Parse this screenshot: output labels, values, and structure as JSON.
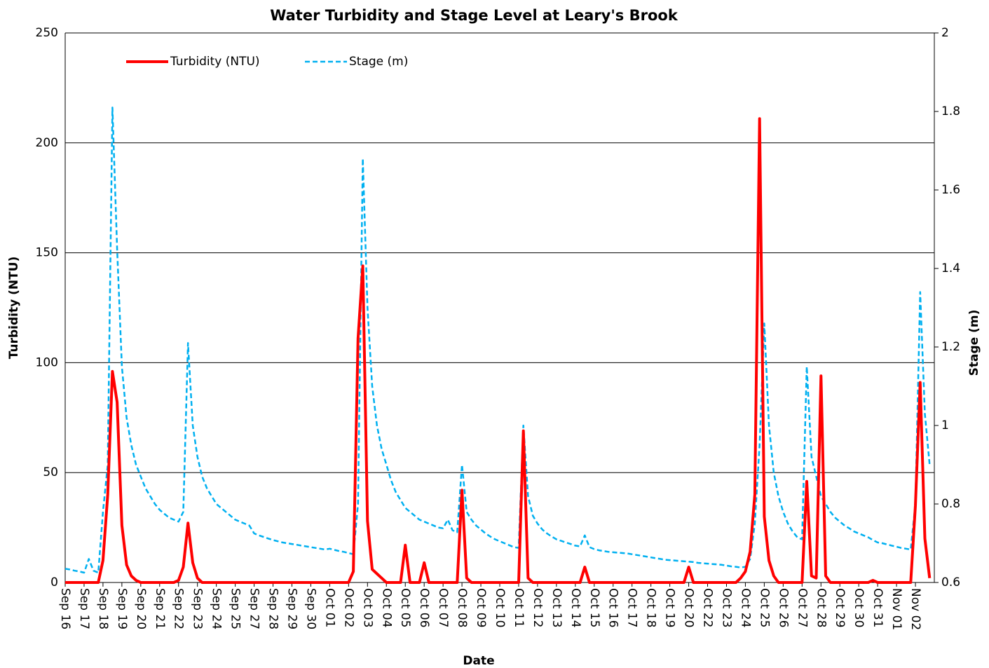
{
  "chart_data": {
    "type": "line",
    "title": "Water Turbidity and Stage Level at Leary's Brook",
    "x_label": "Date",
    "y_label": "Turbidity (NTU)",
    "y2_label": "Stage (m)",
    "categories": [
      "Sep 16",
      null,
      null,
      null,
      "Sep 17",
      null,
      null,
      null,
      "Sep 18",
      null,
      null,
      null,
      "Sep 19",
      null,
      null,
      null,
      "Sep 20",
      null,
      null,
      null,
      "Sep 21",
      null,
      null,
      null,
      "Sep 22",
      null,
      null,
      null,
      "Sep 23",
      null,
      null,
      null,
      "Sep 24",
      null,
      null,
      null,
      "Sep 25",
      null,
      null,
      null,
      "Sep 27",
      null,
      null,
      null,
      "Sep 28",
      null,
      null,
      null,
      "Sep 29",
      null,
      null,
      null,
      "Sep 30",
      null,
      null,
      null,
      "Oct 01",
      null,
      null,
      null,
      "Oct 02",
      null,
      null,
      null,
      "Oct 03",
      null,
      null,
      null,
      "Oct 04",
      null,
      null,
      null,
      "Oct 05",
      null,
      null,
      null,
      "Oct 06",
      null,
      null,
      null,
      "Oct 07",
      null,
      null,
      null,
      "Oct 08",
      null,
      null,
      null,
      "Oct 09",
      null,
      null,
      null,
      "Oct 10",
      null,
      null,
      null,
      "Oct 11",
      null,
      null,
      null,
      "Oct 12",
      null,
      null,
      null,
      "Oct 13",
      null,
      null,
      null,
      "Oct 14",
      null,
      null,
      null,
      "Oct 15",
      null,
      null,
      null,
      "Oct 16",
      null,
      null,
      null,
      "Oct 17",
      null,
      null,
      null,
      "Oct 18",
      null,
      null,
      null,
      "Oct 19",
      null,
      null,
      null,
      "Oct 20",
      null,
      null,
      null,
      "Oct 22",
      null,
      null,
      null,
      "Oct 23",
      null,
      null,
      null,
      "Oct 24",
      null,
      null,
      null,
      "Oct 25",
      null,
      null,
      null,
      "Oct 26",
      null,
      null,
      null,
      "Oct 27",
      null,
      null,
      null,
      "Oct 28",
      null,
      null,
      null,
      "Oct 29",
      null,
      null,
      null,
      "Oct 30",
      null,
      null,
      null,
      "Oct 31",
      null,
      null,
      null,
      "Nov 01",
      null,
      null,
      null,
      "Nov 02",
      null,
      null,
      null
    ],
    "series": [
      {
        "name": "Turbidity (NTU)",
        "color": "#ff0000",
        "dash": false,
        "values": [
          0,
          0,
          0,
          0,
          0,
          0,
          0,
          0,
          10,
          40,
          96,
          82,
          26,
          8,
          3,
          1,
          0,
          0,
          0,
          0,
          0,
          0,
          0,
          0,
          1,
          7,
          27,
          9,
          2,
          0,
          0,
          0,
          0,
          0,
          0,
          0,
          0,
          0,
          0,
          0,
          0,
          0,
          0,
          0,
          0,
          0,
          0,
          0,
          0,
          0,
          0,
          0,
          0,
          0,
          0,
          0,
          0,
          0,
          0,
          0,
          0,
          5,
          111,
          144,
          28,
          6,
          4,
          2,
          0,
          0,
          0,
          0,
          17,
          0,
          0,
          0,
          9,
          0,
          0,
          0,
          0,
          0,
          0,
          0,
          42,
          2,
          0,
          0,
          0,
          0,
          0,
          0,
          0,
          0,
          0,
          0,
          0,
          69,
          2,
          0,
          0,
          0,
          0,
          0,
          0,
          0,
          0,
          0,
          0,
          0,
          7,
          0,
          0,
          0,
          0,
          0,
          0,
          0,
          0,
          0,
          0,
          0,
          0,
          0,
          0,
          0,
          0,
          0,
          0,
          0,
          0,
          0,
          7,
          0,
          0,
          0,
          0,
          0,
          0,
          0,
          0,
          0,
          0,
          2,
          5,
          14,
          40,
          211,
          30,
          10,
          3,
          0,
          0,
          0,
          0,
          0,
          0,
          46,
          3,
          2,
          94,
          3,
          0,
          0,
          0,
          0,
          0,
          0,
          0,
          0,
          0,
          1,
          0,
          0,
          0,
          0,
          0,
          0,
          0,
          0,
          35,
          91,
          20,
          2
        ]
      },
      {
        "name": "Stage (m)",
        "color": "#00b0f0",
        "dash": true,
        "axis": "y2",
        "values": [
          0.635,
          0.633,
          0.63,
          0.628,
          0.625,
          0.66,
          0.63,
          0.625,
          0.78,
          0.9,
          1.81,
          1.45,
          1.15,
          1.02,
          0.95,
          0.9,
          0.87,
          0.84,
          0.82,
          0.8,
          0.785,
          0.775,
          0.765,
          0.76,
          0.755,
          0.78,
          1.21,
          1.0,
          0.92,
          0.87,
          0.84,
          0.82,
          0.8,
          0.79,
          0.78,
          0.77,
          0.76,
          0.755,
          0.75,
          0.745,
          0.725,
          0.72,
          0.716,
          0.712,
          0.708,
          0.705,
          0.702,
          0.7,
          0.698,
          0.696,
          0.694,
          0.692,
          0.69,
          0.688,
          0.686,
          0.684,
          0.686,
          0.683,
          0.68,
          0.678,
          0.675,
          0.672,
          0.8,
          1.68,
          1.3,
          1.1,
          1.0,
          0.94,
          0.9,
          0.86,
          0.83,
          0.81,
          0.79,
          0.78,
          0.77,
          0.76,
          0.755,
          0.75,
          0.745,
          0.74,
          0.738,
          0.76,
          0.733,
          0.728,
          0.9,
          0.78,
          0.76,
          0.745,
          0.735,
          0.725,
          0.717,
          0.71,
          0.705,
          0.7,
          0.695,
          0.69,
          0.688,
          1.0,
          0.82,
          0.77,
          0.75,
          0.735,
          0.725,
          0.717,
          0.71,
          0.706,
          0.702,
          0.698,
          0.694,
          0.692,
          0.72,
          0.69,
          0.685,
          0.682,
          0.68,
          0.678,
          0.677,
          0.676,
          0.675,
          0.674,
          0.672,
          0.67,
          0.668,
          0.666,
          0.664,
          0.662,
          0.66,
          0.658,
          0.657,
          0.656,
          0.655,
          0.654,
          0.653,
          0.652,
          0.65,
          0.649,
          0.648,
          0.647,
          0.646,
          0.645,
          0.643,
          0.641,
          0.64,
          0.638,
          0.64,
          0.66,
          0.75,
          0.95,
          1.26,
          1.0,
          0.88,
          0.82,
          0.78,
          0.75,
          0.73,
          0.715,
          0.71,
          1.15,
          0.92,
          0.87,
          0.82,
          0.8,
          0.78,
          0.765,
          0.755,
          0.745,
          0.738,
          0.73,
          0.725,
          0.72,
          0.715,
          0.708,
          0.702,
          0.7,
          0.697,
          0.694,
          0.691,
          0.688,
          0.686,
          0.684,
          0.8,
          1.34,
          1.03,
          0.9
        ]
      }
    ],
    "ylim": [
      0,
      250
    ],
    "yticks": [
      0,
      50,
      100,
      150,
      200,
      250
    ],
    "y2lim": [
      0.6,
      2
    ],
    "y2ticks": [
      0.6,
      0.8,
      1,
      1.2,
      1.4,
      1.6,
      1.8,
      2
    ],
    "grid": true,
    "legend": "top-left"
  }
}
